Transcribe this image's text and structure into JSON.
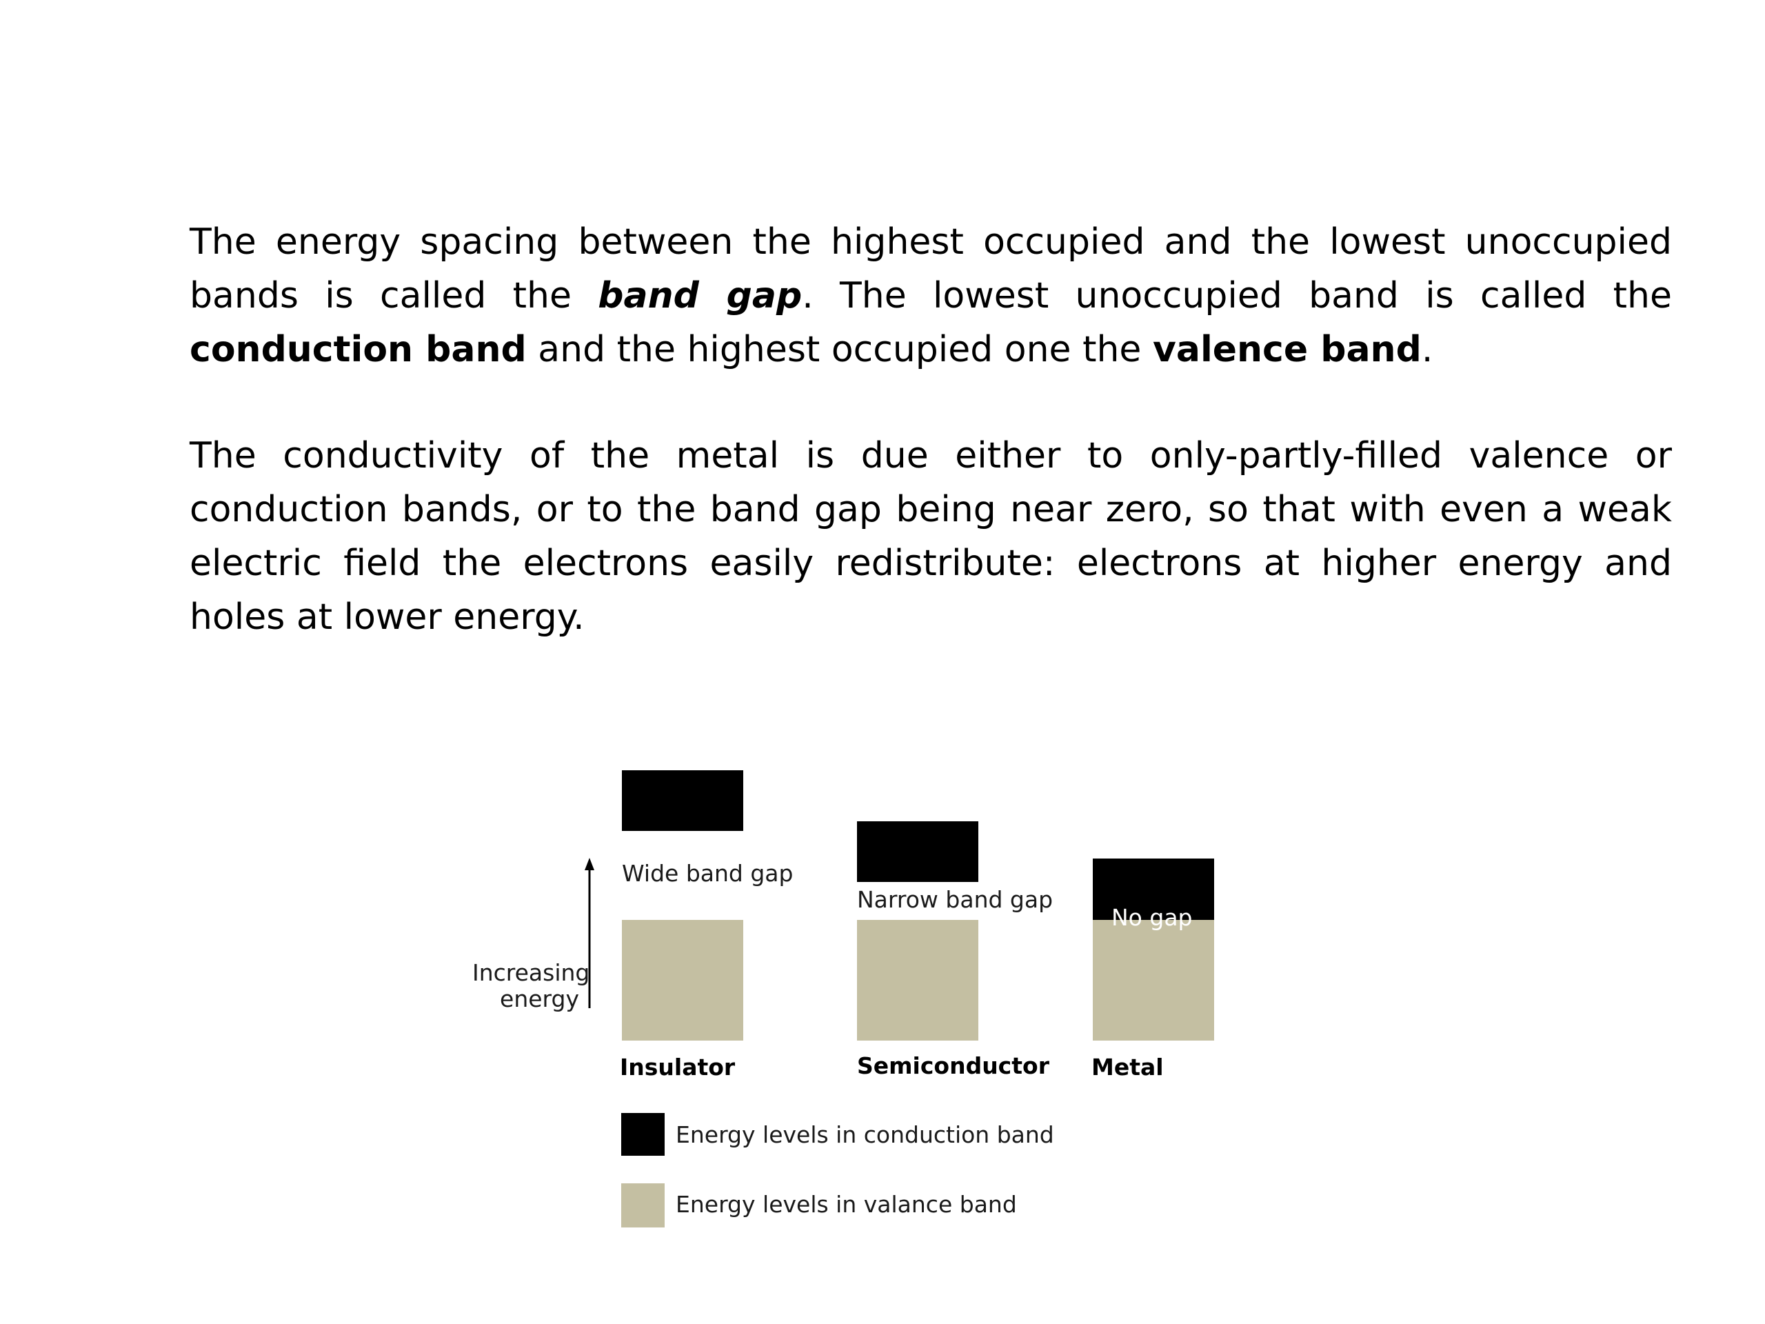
{
  "paragraph1": {
    "t1": "The energy spacing between the highest occupied and the lowest unoccupied bands is called the ",
    "t2": "band gap",
    "t3": ". The lowest unoccupied band is called the ",
    "t4": "conduction band",
    "t5": " and the highest occupied one the ",
    "t6": "valence band",
    "t7": "."
  },
  "paragraph2": "The conductivity of the metal is due either to only-partly-filled valence or conduction bands, or to the band gap being near zero, so that with even a weak electric field the electrons easily redistribute: electrons at higher energy and holes at lower energy.",
  "diagram": {
    "axis_label_line1": "Increasing",
    "axis_label_line2": "energy",
    "materials": [
      {
        "name": "Insulator",
        "gap_label": "Wide band gap"
      },
      {
        "name": "Semiconductor",
        "gap_label": "Narrow band gap"
      },
      {
        "name": "Metal",
        "gap_label": "No gap"
      }
    ],
    "legend": {
      "conduction": "Energy levels in conduction band",
      "valence": "Energy levels in valance band"
    },
    "colors": {
      "conduction_band": "#000000",
      "valence_band": "#c4bfa2"
    }
  }
}
